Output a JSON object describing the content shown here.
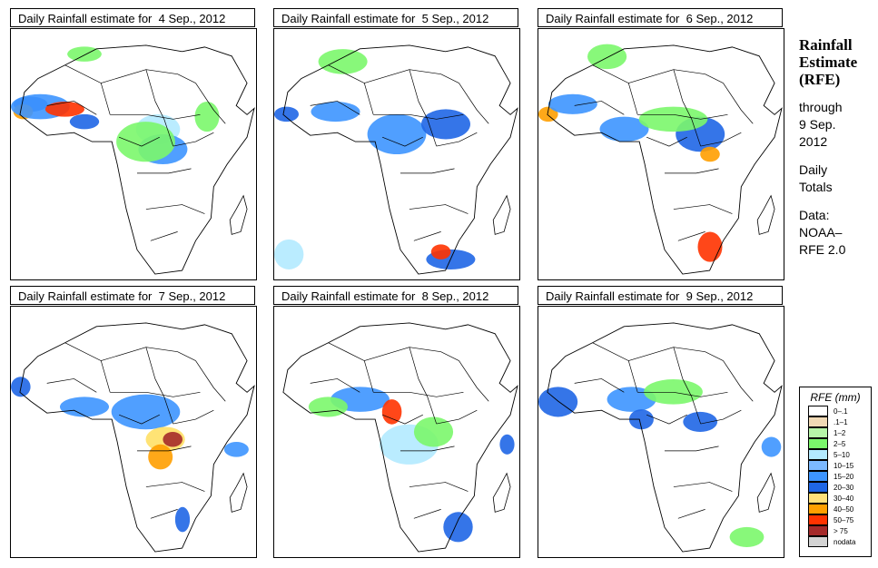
{
  "panels": [
    {
      "title": "Daily Rainfall estimate for  4 Sep., 2012",
      "date": "4 Sep., 2012",
      "blobs": [
        [
          0.08,
          0.3,
          0.07,
          0.03,
          "#1f66e5"
        ],
        [
          0.05,
          0.33,
          0.04,
          0.03,
          "#ff9f00"
        ],
        [
          0.12,
          0.31,
          0.12,
          0.05,
          "#3d95ff"
        ],
        [
          0.22,
          0.32,
          0.08,
          0.03,
          "#ff3300"
        ],
        [
          0.3,
          0.37,
          0.06,
          0.03,
          "#1f66e5"
        ],
        [
          0.6,
          0.4,
          0.09,
          0.06,
          "#b3eaff"
        ],
        [
          0.62,
          0.48,
          0.1,
          0.06,
          "#3d95ff"
        ],
        [
          0.55,
          0.45,
          0.12,
          0.08,
          "#7bf76b"
        ],
        [
          0.8,
          0.35,
          0.05,
          0.06,
          "#7bf76b"
        ],
        [
          0.3,
          0.1,
          0.07,
          0.03,
          "#7bf76b"
        ]
      ]
    },
    {
      "title": "Daily Rainfall estimate for  5 Sep., 2012",
      "date": "5 Sep., 2012",
      "blobs": [
        [
          0.05,
          0.34,
          0.05,
          0.03,
          "#1f66e5"
        ],
        [
          0.25,
          0.33,
          0.1,
          0.04,
          "#3d95ff"
        ],
        [
          0.5,
          0.42,
          0.12,
          0.08,
          "#3d95ff"
        ],
        [
          0.7,
          0.38,
          0.1,
          0.06,
          "#1f66e5"
        ],
        [
          0.28,
          0.13,
          0.1,
          0.05,
          "#7bf76b"
        ],
        [
          0.72,
          0.92,
          0.1,
          0.04,
          "#1f66e5"
        ],
        [
          0.68,
          0.89,
          0.04,
          0.03,
          "#ff3300"
        ],
        [
          0.06,
          0.9,
          0.06,
          0.06,
          "#b3eaff"
        ]
      ]
    },
    {
      "title": "Daily Rainfall estimate for  6 Sep., 2012",
      "date": "6 Sep., 2012",
      "blobs": [
        [
          0.04,
          0.34,
          0.04,
          0.03,
          "#ff9f00"
        ],
        [
          0.14,
          0.3,
          0.1,
          0.04,
          "#3d95ff"
        ],
        [
          0.35,
          0.4,
          0.1,
          0.05,
          "#3d95ff"
        ],
        [
          0.66,
          0.42,
          0.1,
          0.07,
          "#1f66e5"
        ],
        [
          0.7,
          0.5,
          0.04,
          0.03,
          "#ff9f00"
        ],
        [
          0.7,
          0.87,
          0.05,
          0.06,
          "#ff3300"
        ],
        [
          0.55,
          0.36,
          0.14,
          0.05,
          "#7bf76b"
        ],
        [
          0.28,
          0.11,
          0.08,
          0.05,
          "#7bf76b"
        ]
      ]
    },
    {
      "title": "Daily Rainfall estimate for  7 Sep., 2012",
      "date": "7 Sep., 2012",
      "blobs": [
        [
          0.04,
          0.32,
          0.04,
          0.04,
          "#1f66e5"
        ],
        [
          0.55,
          0.42,
          0.14,
          0.07,
          "#3d95ff"
        ],
        [
          0.63,
          0.53,
          0.08,
          0.05,
          "#ffe066"
        ],
        [
          0.66,
          0.53,
          0.04,
          0.03,
          "#a52a2a"
        ],
        [
          0.61,
          0.6,
          0.05,
          0.05,
          "#ff9f00"
        ],
        [
          0.3,
          0.4,
          0.1,
          0.04,
          "#3d95ff"
        ],
        [
          0.7,
          0.85,
          0.03,
          0.05,
          "#1f66e5"
        ],
        [
          0.92,
          0.57,
          0.05,
          0.03,
          "#3d95ff"
        ]
      ]
    },
    {
      "title": "Daily Rainfall estimate for  8 Sep., 2012",
      "date": "8 Sep., 2012",
      "blobs": [
        [
          0.35,
          0.37,
          0.12,
          0.05,
          "#3d95ff"
        ],
        [
          0.48,
          0.42,
          0.04,
          0.05,
          "#ff3300"
        ],
        [
          0.55,
          0.55,
          0.12,
          0.08,
          "#b3eaff"
        ],
        [
          0.65,
          0.5,
          0.08,
          0.06,
          "#7bf76b"
        ],
        [
          0.75,
          0.88,
          0.06,
          0.06,
          "#1f66e5"
        ],
        [
          0.95,
          0.55,
          0.03,
          0.04,
          "#1f66e5"
        ],
        [
          0.22,
          0.4,
          0.08,
          0.04,
          "#7bf76b"
        ]
      ]
    },
    {
      "title": "Daily Rainfall estimate for  9 Sep., 2012",
      "date": "9 Sep., 2012",
      "blobs": [
        [
          0.08,
          0.38,
          0.08,
          0.06,
          "#1f66e5"
        ],
        [
          0.38,
          0.37,
          0.1,
          0.05,
          "#3d95ff"
        ],
        [
          0.42,
          0.45,
          0.05,
          0.04,
          "#1f66e5"
        ],
        [
          0.66,
          0.46,
          0.07,
          0.04,
          "#1f66e5"
        ],
        [
          0.55,
          0.34,
          0.12,
          0.05,
          "#7bf76b"
        ],
        [
          0.95,
          0.56,
          0.04,
          0.04,
          "#3d95ff"
        ],
        [
          0.85,
          0.92,
          0.07,
          0.04,
          "#7bf76b"
        ]
      ]
    }
  ],
  "sidebar": {
    "title_lines": [
      "Rainfall",
      "Estimate",
      "(RFE)"
    ],
    "through_label": "through",
    "through_date_lines": [
      "9 Sep.",
      "2012"
    ],
    "period_lines": [
      "Daily",
      "Totals"
    ],
    "data_label": "Data:",
    "source_lines": [
      "NOAA–",
      "RFE 2.0"
    ]
  },
  "legend": {
    "title": "RFE (mm)",
    "items": [
      {
        "label": "0–.1",
        "color": "#ffffff"
      },
      {
        "label": ".1–1",
        "color": "#f0d9b5"
      },
      {
        "label": "1–2",
        "color": "#b6f5a8"
      },
      {
        "label": "2–5",
        "color": "#7bf76b"
      },
      {
        "label": "5–10",
        "color": "#b3eaff"
      },
      {
        "label": "10–15",
        "color": "#7cb9ff"
      },
      {
        "label": "15–20",
        "color": "#3d95ff"
      },
      {
        "label": "20–30",
        "color": "#1f66e5"
      },
      {
        "label": "30–40",
        "color": "#ffe07a"
      },
      {
        "label": "40–50",
        "color": "#ff9f00"
      },
      {
        "label": "50–75",
        "color": "#ff3300"
      },
      {
        "label": "> 75",
        "color": "#a52a2a"
      },
      {
        "label": "nodata",
        "color": "#d3d3d3"
      }
    ]
  }
}
